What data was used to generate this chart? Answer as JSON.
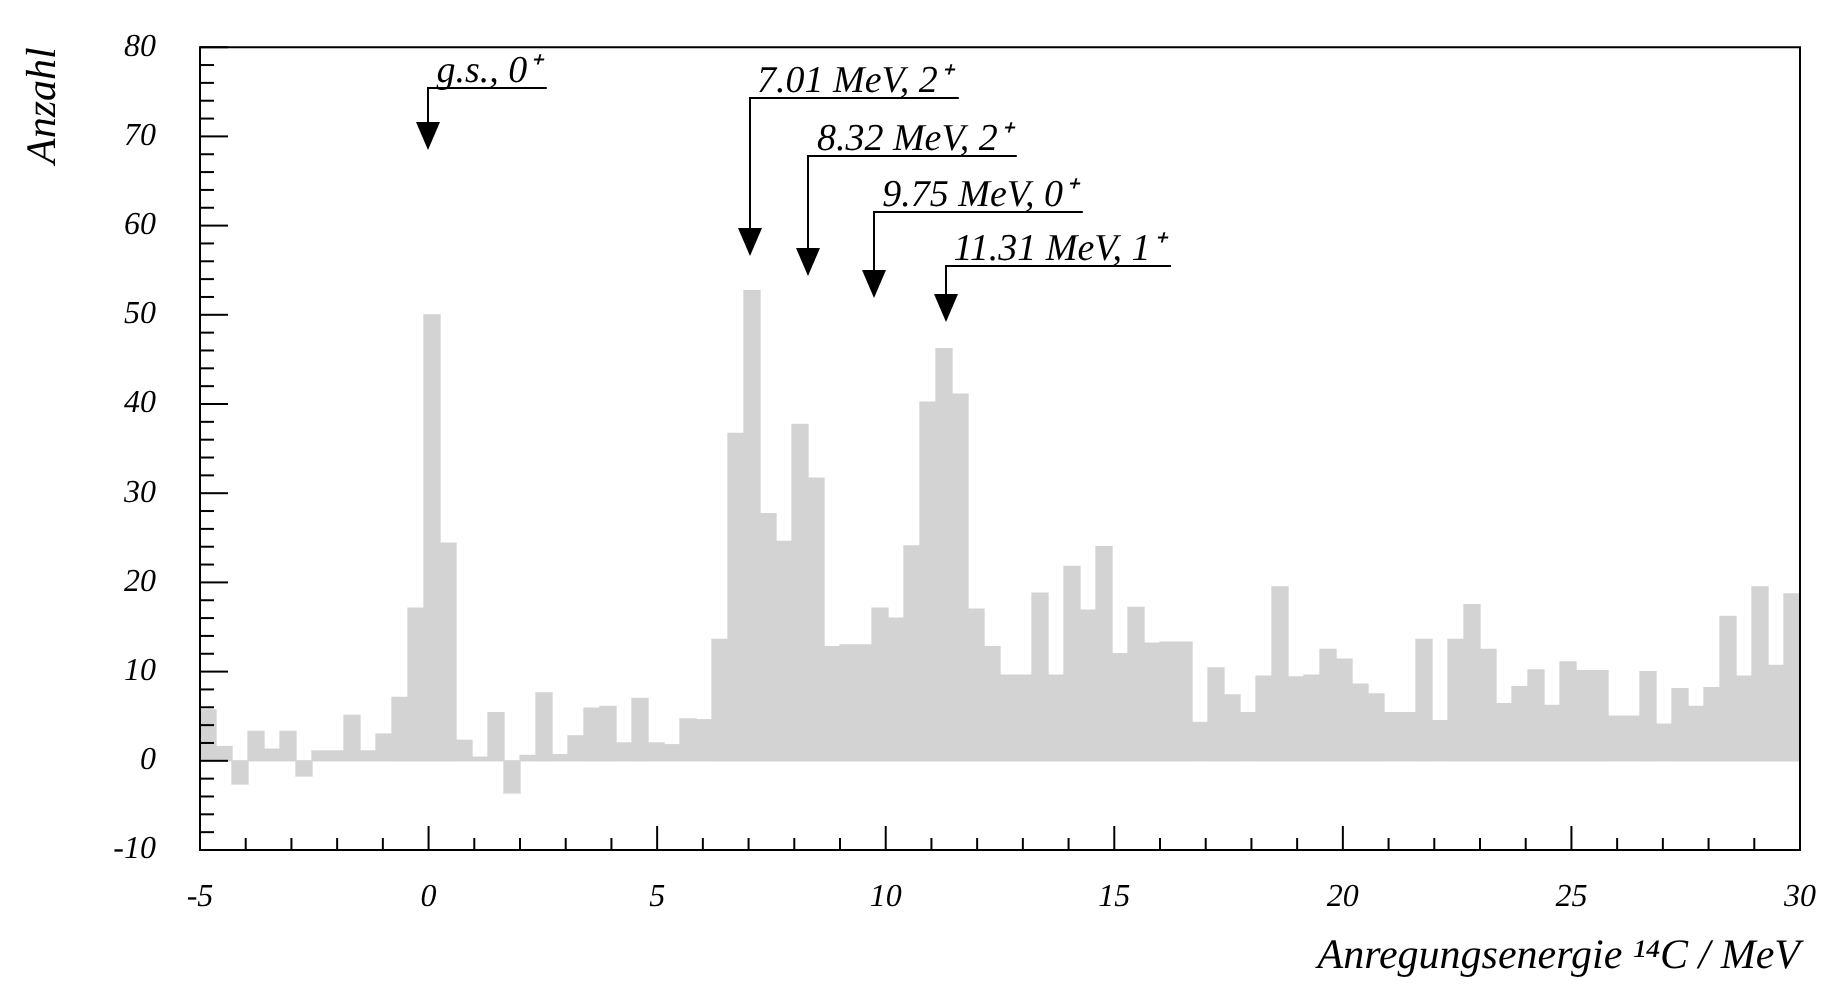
{
  "chart_data": {
    "type": "histogram",
    "xlabel": "Anregungsenergie ¹⁴C / MeV",
    "ylabel": "Anzahl",
    "bins": [
      -5,
      -4.65,
      -4.3,
      -3.95,
      -3.6,
      -3.25,
      -2.9,
      -2.55,
      -2.2,
      -1.85,
      -1.5,
      -1.15,
      -0.8,
      -0.45,
      -0.1,
      0.25,
      0.6,
      0.95,
      1.3,
      1.65,
      2,
      2.35,
      2.7,
      3.05,
      3.4,
      3.75,
      4.1,
      4.45,
      4.8,
      5.15,
      5.5,
      5.85,
      6.2,
      6.55,
      6.9,
      7.25,
      7.6,
      7.95,
      8.3,
      8.65,
      9,
      9.35,
      9.7,
      10.05,
      10.4,
      10.75,
      11.1,
      11.45,
      11.8,
      12.15,
      12.5,
      12.85,
      13.2,
      13.55,
      13.9,
      14.25,
      14.6,
      14.95,
      15.3,
      15.65,
      16,
      16.35,
      16.7,
      17.05,
      17.4,
      17.75,
      18.1,
      18.45,
      18.8,
      19.15,
      19.5,
      19.85,
      20.2,
      20.55,
      20.9,
      21.25,
      21.6,
      21.95,
      22.3,
      22.65,
      23,
      23.35,
      23.7,
      24.05,
      24.4,
      24.75,
      25.1,
      25.45,
      25.8,
      26.15,
      26.5,
      26.85,
      27.2,
      27.55,
      27.9,
      28.25,
      28.6,
      28.95,
      29.3,
      29.65,
      30
    ],
    "values": [
      5.7,
      1.6,
      -2.6,
      3.3,
      1.3,
      3.3,
      -1.7,
      1.1,
      1.1,
      5.1,
      1.1,
      3,
      7.1,
      17.1,
      50,
      24.4,
      2.3,
      0.4,
      5.4,
      -3.6,
      0.6,
      7.6,
      0.7,
      2.8,
      5.9,
      6.1,
      2,
      7,
      2,
      1.8,
      4.7,
      4.6,
      13.6,
      36.7,
      52.7,
      27.7,
      24.6,
      37.7,
      31.7,
      12.8,
      13,
      13,
      17.1,
      16,
      24.1,
      40.2,
      46.2,
      41.1,
      17,
      12.8,
      9.6,
      9.6,
      18.8,
      9.6,
      21.8,
      16.9,
      24,
      12,
      17.2,
      13.2,
      13.3,
      13.3,
      4.3,
      10.4,
      7.4,
      5.4,
      9.5,
      19.5,
      9.4,
      9.6,
      12.5,
      11.4,
      8.6,
      7.5,
      5.4,
      5.4,
      13.6,
      4.5,
      13.6,
      17.5,
      12.5,
      6.4,
      8.3,
      10.2,
      6.2,
      11.1,
      10.1,
      10.1,
      5,
      5,
      10,
      4.1,
      8.1,
      6.1,
      8.2,
      16.2,
      9.5,
      19.5,
      10.7,
      18.7
    ],
    "color": "#d3d3d3",
    "xlim": [
      -5,
      30
    ],
    "xticks": [
      -5,
      0,
      5,
      10,
      15,
      20,
      25,
      30
    ],
    "ylim": [
      -10,
      80
    ],
    "yticks": [
      -10,
      0,
      10,
      20,
      30,
      40,
      50,
      60,
      70,
      80
    ],
    "ref_lines": [
      {
        "axis": "x",
        "value": 0,
        "label": "g.s., 0⁺"
      },
      {
        "axis": "x",
        "value": 7.01,
        "label": "7.01 MeV, 2⁺"
      },
      {
        "axis": "x",
        "value": 8.32,
        "label": "8.32 MeV, 2⁺"
      },
      {
        "axis": "x",
        "value": 9.75,
        "label": "9.75 MeV, 0⁺"
      },
      {
        "axis": "x",
        "value": 11.31,
        "label": "11.31 MeV, 1⁺"
      }
    ]
  }
}
